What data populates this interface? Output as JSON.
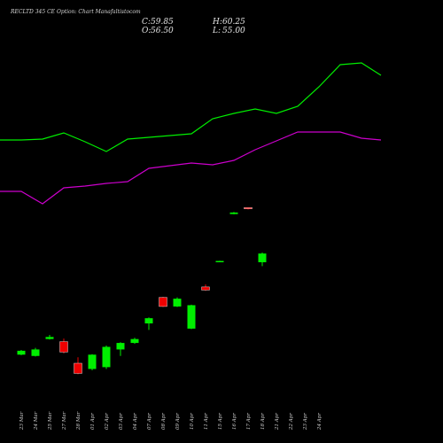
{
  "chart_data": {
    "type": "candlestick",
    "title": "RECLTD 345 CE Option: Chart Manafaltistocom",
    "ohlc_readout": {
      "C": "59.85",
      "H": "60.25",
      "O": "56.50",
      "L": "55.00"
    },
    "labels": {
      "C": "C:",
      "H": "H:",
      "O": "O:",
      "L": "L:"
    },
    "x_ticks": [
      "23 Mar",
      "24 Mar",
      "25 Mar",
      "27 Mar",
      "28 Mar",
      "01 Apr",
      "02 Apr",
      "03 Apr",
      "04 Apr",
      "07 Apr",
      "08 Apr",
      "09 Apr",
      "10 Apr",
      "11 Apr",
      "15 Apr",
      "16 Apr",
      "17 Apr",
      "18 Apr",
      "21 Apr",
      "22 Apr",
      "23 Apr",
      "24 Apr"
    ],
    "candles": [
      {
        "date": "23 Mar",
        "o": 21.0,
        "c": 22.5,
        "h": 22.8,
        "l": 20.8
      },
      {
        "date": "24 Mar",
        "o": 20.5,
        "c": 23.0,
        "h": 23.6,
        "l": 20.3
      },
      {
        "date": "25 Mar",
        "o": 27.0,
        "c": 27.8,
        "h": 28.6,
        "l": 26.8
      },
      {
        "date": "27 Mar",
        "o": 26.0,
        "c": 22.0,
        "h": 27.2,
        "l": 21.5
      },
      {
        "date": "28 Mar",
        "o": 17.7,
        "c": 13.8,
        "h": 20.0,
        "l": 13.5
      },
      {
        "date": "01 Apr",
        "o": 15.5,
        "c": 21.0,
        "h": 21.2,
        "l": 15.0
      },
      {
        "date": "02 Apr",
        "o": 16.2,
        "c": 24.0,
        "h": 24.5,
        "l": 15.5
      },
      {
        "date": "03 Apr",
        "o": 23.0,
        "c": 25.5,
        "h": 25.8,
        "l": 20.5
      },
      {
        "date": "04 Apr",
        "o": 25.5,
        "c": 27.0,
        "h": 27.5,
        "l": 25.2
      },
      {
        "date": "07 Apr",
        "o": 33.0,
        "c": 35.0,
        "h": 35.3,
        "l": 30.5
      },
      {
        "date": "08 Apr",
        "o": 43.0,
        "c": 39.5,
        "h": 43.2,
        "l": 39.3
      },
      {
        "date": "09 Apr",
        "o": 39.5,
        "c": 42.5,
        "h": 43.0,
        "l": 39.3
      },
      {
        "date": "10 Apr",
        "o": 31.0,
        "c": 40.0,
        "h": 40.2,
        "l": 30.8
      },
      {
        "date": "11 Apr",
        "o": 47.0,
        "c": 45.8,
        "h": 48.0,
        "l": 45.5
      },
      {
        "date": "15 Apr",
        "o": 56.7,
        "c": 57.0,
        "h": 57.1,
        "l": 56.6
      },
      {
        "date": "16 Apr",
        "o": 75.0,
        "c": 75.6,
        "h": 75.8,
        "l": 74.9
      },
      {
        "date": "17 Apr",
        "o": 77.5,
        "c": 77.0,
        "h": 77.6,
        "l": 76.8
      },
      {
        "date": "18 Apr",
        "o": 56.5,
        "c": 59.85,
        "h": 60.25,
        "l": 55.0
      }
    ],
    "moving_averages": [
      {
        "color": "#00ee00",
        "points": [
          [
            0,
            158
          ],
          [
            24,
            158
          ],
          [
            48,
            157
          ],
          [
            72,
            150
          ],
          [
            96,
            160
          ],
          [
            120,
            171
          ],
          [
            144,
            157
          ],
          [
            168,
            155
          ],
          [
            192,
            153
          ],
          [
            216,
            151
          ],
          [
            240,
            134
          ],
          [
            264,
            128
          ],
          [
            288,
            123
          ],
          [
            312,
            128
          ],
          [
            336,
            120
          ],
          [
            360,
            98
          ],
          [
            384,
            73
          ],
          [
            408,
            71
          ],
          [
            430,
            85
          ]
        ]
      },
      {
        "color": "#cc00cc",
        "points": [
          [
            0,
            216
          ],
          [
            24,
            216
          ],
          [
            48,
            230
          ],
          [
            72,
            212
          ],
          [
            96,
            210
          ],
          [
            120,
            207
          ],
          [
            144,
            205
          ],
          [
            168,
            190
          ],
          [
            192,
            187
          ],
          [
            216,
            184
          ],
          [
            240,
            186
          ],
          [
            264,
            181
          ],
          [
            288,
            169
          ],
          [
            312,
            159
          ],
          [
            336,
            149
          ],
          [
            360,
            149
          ],
          [
            384,
            149
          ],
          [
            408,
            156
          ],
          [
            430,
            158
          ]
        ]
      }
    ],
    "colors": {
      "up": "#00ee00",
      "down": "#ee0000",
      "background": "#000000"
    },
    "y_range": [
      0,
      130
    ],
    "grid": false
  }
}
